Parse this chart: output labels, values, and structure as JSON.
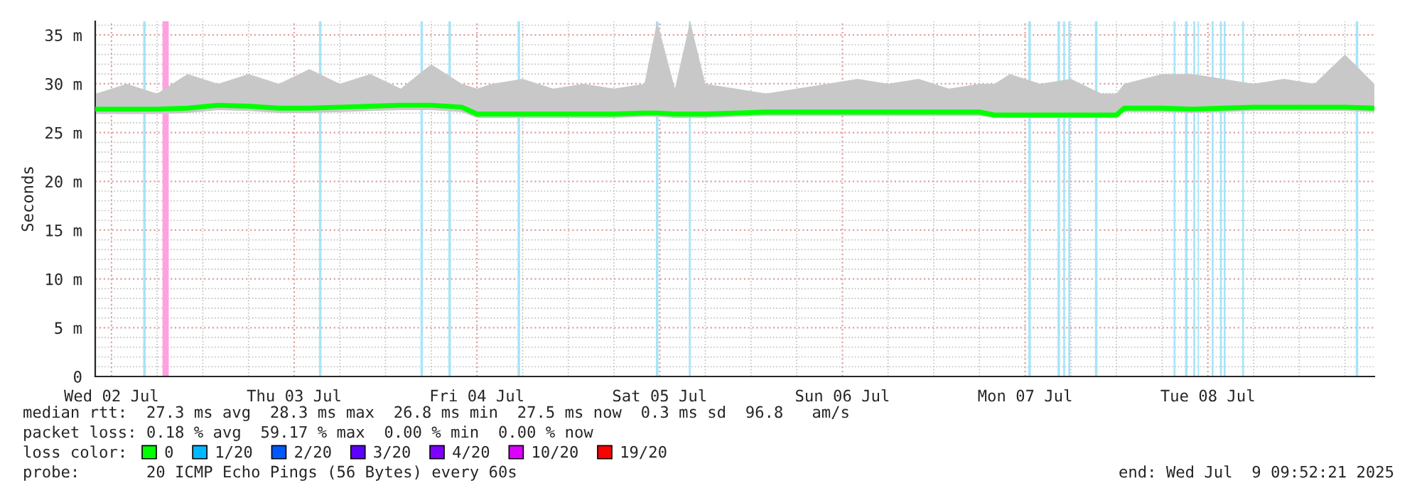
{
  "chart_data": {
    "type": "line",
    "ylabel": "Seconds",
    "x": [
      "2025-07-02T10:00",
      "2025-07-02T14:00",
      "2025-07-02T18:00",
      "2025-07-02T22:00",
      "2025-07-03T02:00",
      "2025-07-03T06:00",
      "2025-07-03T10:00",
      "2025-07-03T14:00",
      "2025-07-03T18:00",
      "2025-07-03T22:00",
      "2025-07-04T02:00",
      "2025-07-04T06:00",
      "2025-07-04T10:00",
      "2025-07-04T12:00",
      "2025-07-04T14:00",
      "2025-07-04T18:00",
      "2025-07-04T22:00",
      "2025-07-05T02:00",
      "2025-07-05T06:00",
      "2025-07-05T10:00",
      "2025-07-05T11:40",
      "2025-07-05T14:00",
      "2025-07-05T16:00",
      "2025-07-05T18:00",
      "2025-07-05T22:00",
      "2025-07-06T02:00",
      "2025-07-06T06:00",
      "2025-07-06T10:00",
      "2025-07-06T14:00",
      "2025-07-06T18:00",
      "2025-07-06T22:00",
      "2025-07-07T02:00",
      "2025-07-07T06:00",
      "2025-07-07T08:00",
      "2025-07-07T10:00",
      "2025-07-07T14:00",
      "2025-07-07T18:00",
      "2025-07-07T22:00",
      "2025-07-08T00:00",
      "2025-07-08T01:00",
      "2025-07-08T06:00",
      "2025-07-08T10:00",
      "2025-07-08T14:00",
      "2025-07-08T18:00",
      "2025-07-08T22:00",
      "2025-07-09T02:00",
      "2025-07-09T06:00",
      "2025-07-09T09:52"
    ],
    "series": [
      {
        "name": "0",
        "color": "#00ff00",
        "values": [
          27.4,
          27.4,
          27.4,
          27.5,
          27.8,
          27.7,
          27.5,
          27.5,
          27.6,
          27.7,
          27.8,
          27.8,
          27.6,
          26.9,
          26.9,
          26.9,
          26.9,
          26.9,
          26.9,
          27.0,
          27.0,
          26.9,
          26.9,
          26.9,
          27.0,
          27.1,
          27.1,
          27.1,
          27.1,
          27.1,
          27.1,
          27.1,
          27.1,
          26.8,
          26.8,
          26.8,
          26.8,
          26.8,
          26.8,
          27.5,
          27.5,
          27.4,
          27.5,
          27.6,
          27.6,
          27.6,
          27.6,
          27.5
        ],
        "lower": [
          26.9,
          26.9,
          26.9,
          27.0,
          27.3,
          27.2,
          27.0,
          27.0,
          27.1,
          27.2,
          27.3,
          27.3,
          27.1,
          26.5,
          26.5,
          26.5,
          26.5,
          26.5,
          26.5,
          26.6,
          26.6,
          26.5,
          26.5,
          26.5,
          26.6,
          26.7,
          26.7,
          26.7,
          26.7,
          26.7,
          26.7,
          26.7,
          26.7,
          26.5,
          26.5,
          26.5,
          26.5,
          26.5,
          26.5,
          27.1,
          27.1,
          27.0,
          27.1,
          27.2,
          27.2,
          27.2,
          27.2,
          27.1
        ],
        "upper": [
          29.0,
          30.0,
          29.0,
          31.0,
          30.0,
          31.0,
          30.0,
          31.5,
          30.0,
          31.0,
          29.5,
          32.0,
          30.0,
          29.5,
          30.0,
          30.5,
          29.5,
          30.0,
          29.5,
          30.0,
          36.4,
          29.5,
          36.4,
          30.0,
          29.5,
          29.0,
          29.5,
          30.0,
          30.5,
          30.0,
          30.5,
          29.5,
          30.0,
          30.0,
          31.0,
          30.0,
          30.5,
          29.0,
          29.0,
          30.0,
          31.0,
          31.0,
          30.5,
          30.0,
          30.5,
          30.0,
          33.0,
          30.0
        ]
      },
      {
        "name": "1/20",
        "color": "#00b8ff",
        "values": [
          null,
          null,
          null,
          null,
          null,
          null,
          null,
          null,
          null,
          null,
          null,
          null,
          null,
          null,
          null,
          null,
          null,
          null,
          null,
          null,
          null,
          null,
          null,
          null,
          null,
          null,
          null,
          null,
          null,
          null,
          null,
          null,
          null,
          null,
          null,
          null,
          null,
          null,
          null,
          null,
          null,
          null,
          null,
          null,
          null,
          null,
          null,
          null
        ]
      },
      {
        "name": "2/20",
        "color": "#0059ff",
        "values": [
          null,
          null,
          null,
          null,
          null,
          null,
          null,
          null,
          null,
          null,
          null,
          null,
          null,
          null,
          null,
          null,
          null,
          null,
          null,
          null,
          null,
          null,
          null,
          null,
          null,
          null,
          null,
          null,
          null,
          null,
          null,
          null,
          null,
          null,
          null,
          null,
          null,
          null,
          null,
          null,
          null,
          null,
          null,
          null,
          null,
          null,
          null,
          null
        ]
      },
      {
        "name": "3/20",
        "color": "#5e00ff",
        "values": [
          null,
          null,
          null,
          null,
          null,
          null,
          null,
          null,
          null,
          null,
          null,
          null,
          null,
          null,
          null,
          null,
          null,
          null,
          null,
          null,
          null,
          null,
          null,
          null,
          null,
          null,
          null,
          null,
          null,
          null,
          null,
          null,
          null,
          null,
          null,
          null,
          null,
          null,
          null,
          null,
          null,
          null,
          null,
          null,
          null,
          null,
          null,
          null
        ]
      },
      {
        "name": "4/20",
        "color": "#7e00ff",
        "values": [
          null,
          null,
          null,
          null,
          null,
          null,
          null,
          null,
          null,
          null,
          null,
          null,
          null,
          null,
          null,
          null,
          null,
          null,
          null,
          null,
          null,
          null,
          null,
          null,
          null,
          null,
          null,
          null,
          null,
          null,
          null,
          null,
          null,
          null,
          null,
          null,
          null,
          null,
          null,
          null,
          null,
          null,
          null,
          null,
          null,
          null,
          null,
          null
        ]
      },
      {
        "name": "10/20",
        "color": "#dd00ff",
        "values": [
          null,
          null,
          null,
          null,
          null,
          null,
          null,
          null,
          null,
          null,
          null,
          null,
          null,
          null,
          null,
          null,
          null,
          null,
          null,
          null,
          null,
          null,
          null,
          null,
          null,
          null,
          null,
          null,
          null,
          null,
          null,
          null,
          null,
          null,
          null,
          null,
          null,
          null,
          null,
          null,
          null,
          null,
          null,
          null,
          null,
          null,
          null,
          null
        ]
      },
      {
        "name": "19/20",
        "color": "#ff0000",
        "values": [
          null,
          null,
          null,
          null,
          null,
          null,
          null,
          null,
          null,
          null,
          null,
          null,
          null,
          null,
          null,
          null,
          null,
          null,
          null,
          null,
          null,
          null,
          null,
          null,
          null,
          null,
          null,
          null,
          null,
          null,
          null,
          null,
          null,
          null,
          null,
          null,
          null,
          null,
          null,
          null,
          null,
          null,
          null,
          null,
          null,
          null,
          null,
          null
        ]
      }
    ],
    "legend": "bottom",
    "legend_title": "loss color:",
    "xlim": [
      "2025-07-02T09:52",
      "2025-07-09T09:52"
    ],
    "xticks": [
      {
        "value": "2025-07-02T12:00",
        "label": "Wed 02 Jul"
      },
      {
        "value": "2025-07-03T12:00",
        "label": "Thu 03 Jul"
      },
      {
        "value": "2025-07-04T12:00",
        "label": "Fri 04 Jul"
      },
      {
        "value": "2025-07-05T12:00",
        "label": "Sat 05 Jul"
      },
      {
        "value": "2025-07-06T12:00",
        "label": "Sun 06 Jul"
      },
      {
        "value": "2025-07-07T12:00",
        "label": "Mon 07 Jul"
      },
      {
        "value": "2025-07-08T12:00",
        "label": "Tue 08 Jul"
      }
    ],
    "ylim": [
      0,
      36.4
    ],
    "yticks": [
      0,
      {
        "value": 5,
        "label": "5 m"
      },
      {
        "value": 10,
        "label": "10 m"
      },
      {
        "value": 15,
        "label": "15 m"
      },
      {
        "value": 20,
        "label": "20 m"
      },
      {
        "value": 25,
        "label": "25 m"
      },
      {
        "value": 30,
        "label": "30 m"
      },
      {
        "value": 35,
        "label": "35 m"
      }
    ],
    "grid": true,
    "bands": [
      {
        "axis": "x",
        "from": "2025-07-02T16:10",
        "to": "2025-07-02T16:30",
        "color": "#a8e4f8"
      },
      {
        "axis": "x",
        "from": "2025-07-02T18:42",
        "to": "2025-07-02T19:31",
        "color": "#ffa0e0"
      },
      {
        "axis": "x",
        "from": "2025-07-03T15:15",
        "to": "2025-07-03T15:35",
        "color": "#a8e4f8"
      },
      {
        "axis": "x",
        "from": "2025-07-04T04:35",
        "to": "2025-07-04T04:55",
        "color": "#a8e4f8"
      },
      {
        "axis": "x",
        "from": "2025-07-04T08:15",
        "to": "2025-07-04T08:35",
        "color": "#a8e4f8"
      },
      {
        "axis": "x",
        "from": "2025-07-04T17:20",
        "to": "2025-07-04T17:40",
        "color": "#a8e4f8"
      },
      {
        "axis": "x",
        "from": "2025-07-05T11:30",
        "to": "2025-07-05T11:50",
        "color": "#a8e4f8"
      },
      {
        "axis": "x",
        "from": "2025-07-05T15:50",
        "to": "2025-07-05T16:05",
        "color": "#a8e4f8"
      },
      {
        "axis": "x",
        "from": "2025-07-07T12:25",
        "to": "2025-07-07T12:45",
        "color": "#a8e4f8"
      },
      {
        "axis": "x",
        "from": "2025-07-07T16:15",
        "to": "2025-07-07T16:35",
        "color": "#a8e4f8"
      },
      {
        "axis": "x",
        "from": "2025-07-07T17:00",
        "to": "2025-07-07T17:15",
        "color": "#a8e4f8"
      },
      {
        "axis": "x",
        "from": "2025-07-07T17:40",
        "to": "2025-07-07T17:55",
        "color": "#a8e4f8"
      },
      {
        "axis": "x",
        "from": "2025-07-07T21:10",
        "to": "2025-07-07T21:30",
        "color": "#a8e4f8"
      },
      {
        "axis": "x",
        "from": "2025-07-08T07:30",
        "to": "2025-07-08T07:45",
        "color": "#a8e4f8"
      },
      {
        "axis": "x",
        "from": "2025-07-08T09:00",
        "to": "2025-07-08T09:20",
        "color": "#a8e4f8"
      },
      {
        "axis": "x",
        "from": "2025-07-08T10:05",
        "to": "2025-07-08T10:20",
        "color": "#a8e4f8"
      },
      {
        "axis": "x",
        "from": "2025-07-08T10:40",
        "to": "2025-07-08T10:50",
        "color": "#a8e4f8"
      },
      {
        "axis": "x",
        "from": "2025-07-08T12:30",
        "to": "2025-07-08T12:45",
        "color": "#a8e4f8"
      },
      {
        "axis": "x",
        "from": "2025-07-08T13:35",
        "to": "2025-07-08T13:50",
        "color": "#a8e4f8"
      },
      {
        "axis": "x",
        "from": "2025-07-08T14:05",
        "to": "2025-07-08T14:20",
        "color": "#a8e4f8"
      },
      {
        "axis": "x",
        "from": "2025-07-08T16:30",
        "to": "2025-07-08T16:45",
        "color": "#a8e4f8"
      },
      {
        "axis": "x",
        "from": "2025-07-09T07:25",
        "to": "2025-07-09T07:45",
        "color": "#a8e4f8"
      }
    ],
    "annotations": [
      "median rtt:  27.3 ms avg  28.3 ms max  26.8 ms min  27.5 ms now  0.3 ms sd  96.8   am/s",
      "packet loss: 0.18 % avg  59.17 % max  0.00 % min  0.00 % now",
      "probe:       20 ICMP Echo Pings (56 Bytes) every 60s",
      "end: Wed Jul  9 09:52:21 2025"
    ]
  }
}
